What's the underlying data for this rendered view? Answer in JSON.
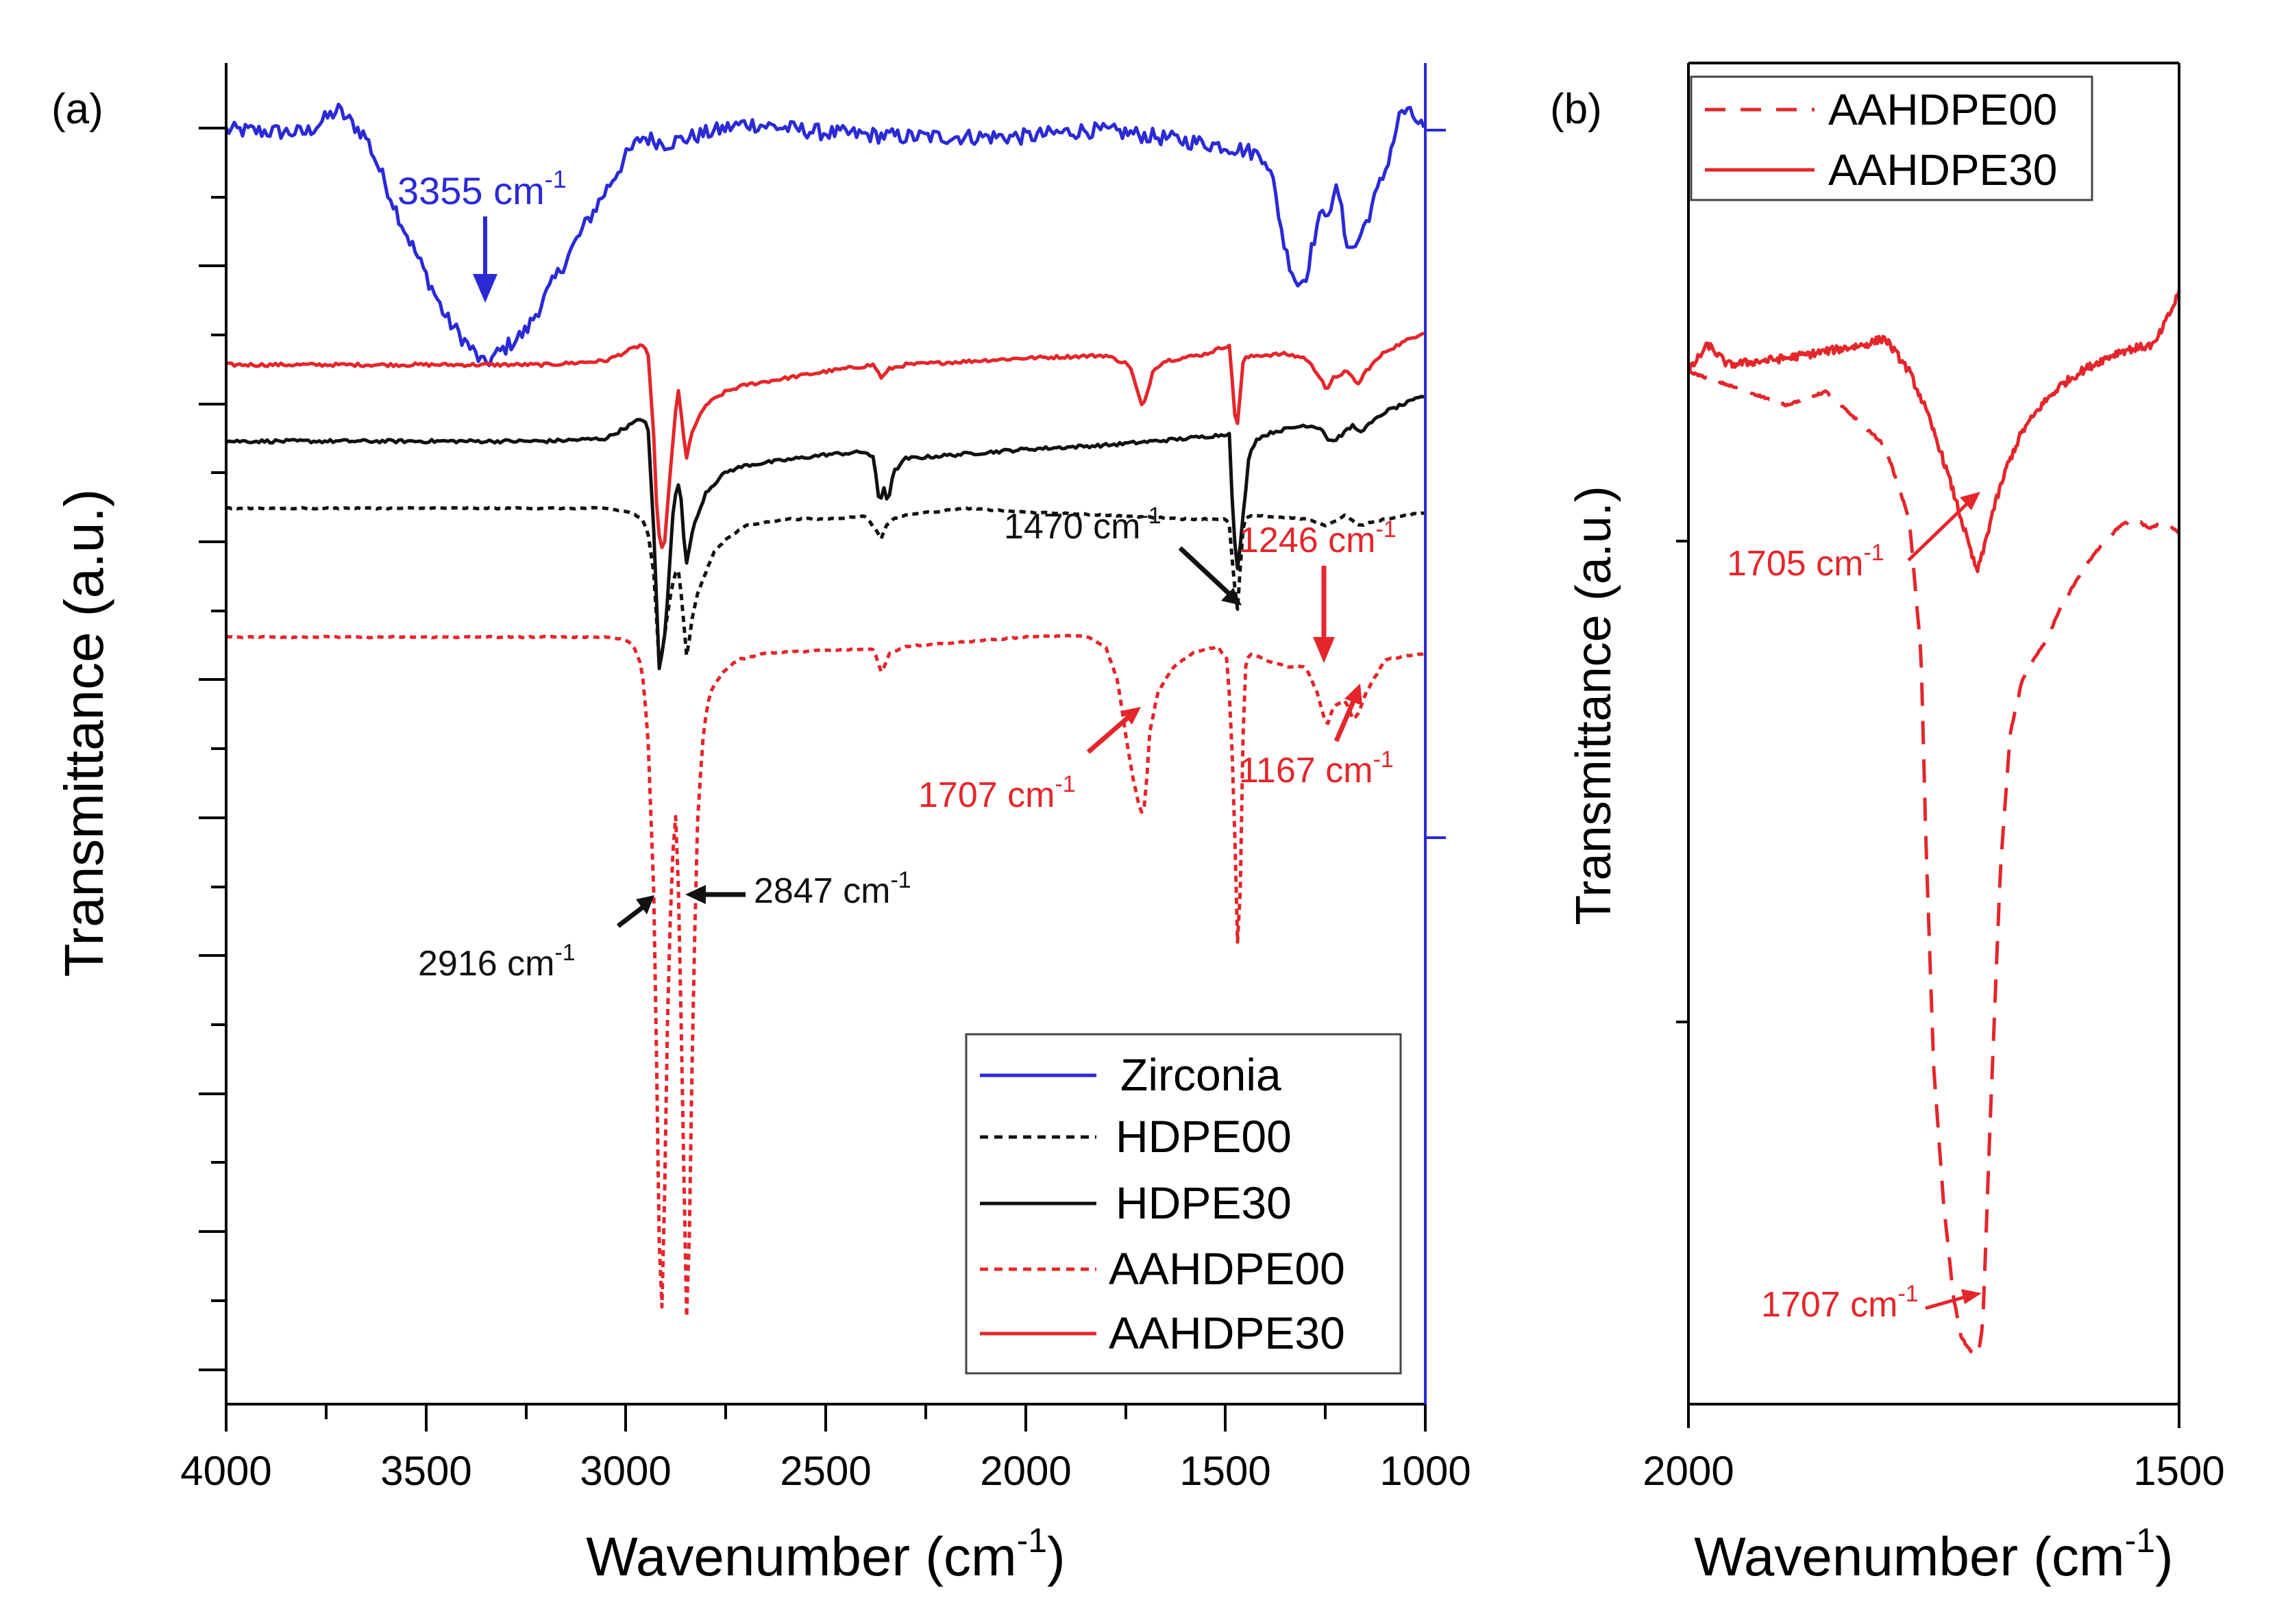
{
  "figure": {
    "colors": {
      "blue": "#2a2ad6",
      "red": "#e4262b",
      "black": "#111111",
      "axis": "#000000"
    }
  },
  "chart_data": [
    {
      "panel_label": "(a)",
      "type": "line",
      "xlabel": "Wavenumber (cm",
      "xlabel_sup": "-1",
      "xlabel_close": ")",
      "ylabel": "Transmittance (a.u.)",
      "xlim": [
        4000,
        1000
      ],
      "ylim": [
        0,
        100
      ],
      "x_ticks": [
        4000,
        3500,
        3000,
        2500,
        2000,
        1500,
        1000
      ],
      "x_tick_labels": [
        "4000",
        "3500",
        "3000",
        "2500",
        "2000",
        "1500",
        "1000"
      ],
      "right_axis": {
        "color": "#2a2ad6",
        "ticks": [
          95,
          44
        ]
      },
      "legend": {
        "position": "bottom-right",
        "entries": [
          {
            "label": "Zirconia",
            "color": "#2a2ad6",
            "dash": "solid"
          },
          {
            "label": "HDPE00",
            "color": "#111111",
            "dash": "dotted"
          },
          {
            "label": "HDPE30",
            "color": "#111111",
            "dash": "solid"
          },
          {
            "label": "AAHDPE00",
            "color": "#e4262b",
            "dash": "dotted"
          },
          {
            "label": "AAHDPE30",
            "color": "#e4262b",
            "dash": "solid"
          }
        ]
      },
      "series": [
        {
          "name": "Zirconia",
          "color": "#2a2ad6",
          "dash": "solid",
          "noise": 1.2,
          "x": [
            4000,
            3800,
            3720,
            3650,
            3560,
            3450,
            3355,
            3250,
            3100,
            3000,
            2960,
            2900,
            2700,
            2500,
            2300,
            2000,
            1850,
            1750,
            1600,
            1500,
            1450,
            1400,
            1380,
            1350,
            1320,
            1300,
            1270,
            1250,
            1230,
            1220,
            1200,
            1180,
            1150,
            1100,
            1060,
            1030,
            1000
          ],
          "y": [
            95,
            94.8,
            96.5,
            94.5,
            88,
            81,
            77.5,
            80,
            88,
            93,
            94.5,
            94,
            95.5,
            94.8,
            94.5,
            94.5,
            95,
            94.8,
            94.2,
            93.8,
            93.5,
            93,
            91,
            86,
            83.5,
            84,
            88,
            89,
            89.5,
            91,
            87,
            86,
            88,
            92,
            96.5,
            96,
            95
          ]
        },
        {
          "name": "AAHDPE30",
          "color": "#e4262b",
          "dash": "solid",
          "noise": 0.25,
          "x": [
            4000,
            3500,
            3200,
            3050,
            2960,
            2945,
            2930,
            2920,
            2905,
            2890,
            2870,
            2855,
            2848,
            2835,
            2800,
            2750,
            2700,
            2500,
            2380,
            2360,
            2340,
            2300,
            2000,
            1800,
            1740,
            1720,
            1707,
            1695,
            1680,
            1650,
            1550,
            1490,
            1480,
            1473,
            1466,
            1458,
            1450,
            1420,
            1350,
            1300,
            1260,
            1246,
            1230,
            1200,
            1180,
            1167,
            1150,
            1100,
            1000
          ],
          "y": [
            77.5,
            77.5,
            77.5,
            77.8,
            79,
            78.5,
            72,
            65,
            63.5,
            69,
            76,
            72,
            70.5,
            72.5,
            74.5,
            75.5,
            76,
            77,
            77.5,
            76.5,
            77.2,
            77.5,
            78,
            78.2,
            77.5,
            75.5,
            74.2,
            75.5,
            77.2,
            77.8,
            78.3,
            79,
            75,
            72.5,
            74,
            77.5,
            78,
            78.2,
            78.3,
            78,
            76.5,
            75.5,
            76.5,
            77,
            76.5,
            76,
            77,
            78.5,
            80
          ]
        },
        {
          "name": "HDPE30",
          "color": "#111111",
          "dash": "solid",
          "noise": 0.25,
          "x": [
            4000,
            3500,
            3200,
            3050,
            2960,
            2945,
            2930,
            2916,
            2900,
            2880,
            2865,
            2855,
            2847,
            2835,
            2800,
            2750,
            2700,
            2500,
            2400,
            2380,
            2365,
            2355,
            2345,
            2330,
            2300,
            2000,
            1800,
            1600,
            1500,
            1490,
            1482,
            1475,
            1468,
            1460,
            1450,
            1440,
            1420,
            1380,
            1300,
            1260,
            1246,
            1230,
            1200,
            1180,
            1167,
            1150,
            1100,
            1000
          ],
          "y": [
            71.8,
            71.8,
            71.8,
            72,
            73.5,
            73,
            65,
            54.5,
            58,
            67.5,
            69,
            64.5,
            62.5,
            65,
            68,
            69.5,
            70,
            70.8,
            71,
            70.5,
            67,
            68.5,
            67.2,
            69.5,
            70.5,
            71.2,
            71.5,
            72,
            72.3,
            72.5,
            66.5,
            63.5,
            62,
            65,
            68,
            71,
            72,
            72.5,
            73,
            72.8,
            72,
            71.8,
            72.5,
            73,
            72.5,
            72.8,
            74,
            75.2
          ]
        },
        {
          "name": "HDPE00",
          "color": "#111111",
          "dash": "dotted",
          "noise": 0.1,
          "x": [
            4000,
            3500,
            3200,
            3050,
            2990,
            2960,
            2945,
            2930,
            2920,
            2916,
            2910,
            2900,
            2885,
            2870,
            2860,
            2850,
            2847,
            2843,
            2835,
            2820,
            2800,
            2780,
            2750,
            2700,
            2600,
            2500,
            2400,
            2370,
            2360,
            2350,
            2330,
            2300,
            2150,
            2000,
            1800,
            1600,
            1500,
            1490,
            1480,
            1475,
            1470,
            1466,
            1462,
            1458,
            1450,
            1440,
            1400,
            1300,
            1246,
            1200,
            1167,
            1100,
            1000
          ],
          "y": [
            66.8,
            66.8,
            66.8,
            66.8,
            66.5,
            66,
            65,
            62,
            57,
            55,
            56,
            58,
            61,
            62.5,
            60,
            56.5,
            55.5,
            56.5,
            58.5,
            60.5,
            62,
            63.5,
            64.5,
            65.5,
            66,
            66,
            66.2,
            65,
            64.5,
            65.5,
            66,
            66.3,
            66.8,
            66.5,
            66.3,
            66,
            66,
            65.5,
            61.8,
            60.5,
            59.2,
            60,
            63,
            65,
            66,
            66.2,
            66.2,
            66,
            65.5,
            66.3,
            65.5,
            66,
            66.5
          ]
        },
        {
          "name": "AAHDPE00",
          "color": "#e4262b",
          "dash": "dotted",
          "noise": 0.1,
          "x": [
            4000,
            3500,
            3200,
            3050,
            3000,
            2980,
            2960,
            2945,
            2930,
            2920,
            2913,
            2905,
            2895,
            2885,
            2875,
            2868,
            2860,
            2853,
            2847,
            2840,
            2832,
            2820,
            2805,
            2790,
            2760,
            2720,
            2650,
            2500,
            2380,
            2360,
            2340,
            2300,
            2000,
            1850,
            1800,
            1770,
            1750,
            1730,
            1715,
            1707,
            1700,
            1690,
            1670,
            1630,
            1580,
            1520,
            1495,
            1485,
            1478,
            1472,
            1468,
            1464,
            1458,
            1450,
            1440,
            1400,
            1350,
            1300,
            1270,
            1246,
            1230,
            1200,
            1180,
            1167,
            1150,
            1100,
            1000
          ],
          "y": [
            57.2,
            57.2,
            57.2,
            57.2,
            57,
            56.5,
            55,
            50,
            38,
            20,
            4,
            12,
            30,
            40,
            44,
            38,
            26,
            14,
            5,
            14,
            30,
            44,
            50.5,
            53,
            54.5,
            55.5,
            56,
            56.2,
            56.3,
            54.5,
            56,
            56.5,
            57.2,
            57.3,
            56.5,
            54,
            50,
            46.5,
            44.5,
            44,
            45,
            50,
            53,
            55,
            56,
            56.5,
            55.5,
            50,
            44,
            37,
            32.5,
            36,
            48,
            55,
            56,
            55.5,
            55,
            55,
            53,
            50.5,
            52,
            52.5,
            51,
            51.5,
            53,
            55.5,
            56
          ]
        }
      ],
      "annotations": [
        {
          "text": "3355 cm",
          "sup": "-1",
          "color": "#2a2ad6"
        },
        {
          "text": "2916 cm",
          "sup": "-1",
          "color": "#111111"
        },
        {
          "text": "2847 cm",
          "sup": "-1",
          "color": "#111111"
        },
        {
          "text": "1470 cm",
          "sup": "-1",
          "color": "#111111"
        },
        {
          "text": "1246 cm",
          "sup": "-1",
          "color": "#e4262b"
        },
        {
          "text": "1707 cm",
          "sup": "-1",
          "color": "#e4262b"
        },
        {
          "text": "1167 cm",
          "sup": "-1",
          "color": "#e4262b"
        }
      ]
    },
    {
      "panel_label": "(b)",
      "type": "line",
      "xlabel": "Wavenumber (cm",
      "xlabel_sup": "-1",
      "xlabel_close": ")",
      "ylabel": "Transmittance (a.u.)",
      "xlim": [
        2000,
        1500
      ],
      "ylim": [
        0,
        100
      ],
      "x_ticks": [
        2000,
        1500
      ],
      "x_tick_labels": [
        "2000",
        "1500"
      ],
      "legend": {
        "position": "top-left",
        "entries": [
          {
            "label": "AAHDPE00",
            "color": "#e4262b",
            "dash": "dashed"
          },
          {
            "label": "AAHDPE30",
            "color": "#e4262b",
            "dash": "solid"
          }
        ]
      },
      "series": [
        {
          "name": "AAHDPE00",
          "color": "#e4262b",
          "dash": "dashed",
          "noise": 0.15,
          "x": [
            2000,
            1960,
            1900,
            1860,
            1830,
            1800,
            1775,
            1763,
            1758,
            1750,
            1740,
            1730,
            1722,
            1715,
            1710,
            1707,
            1704,
            1700,
            1692,
            1682,
            1672,
            1660,
            1648,
            1635,
            1620,
            1600,
            1580,
            1560,
            1545,
            1530,
            1515,
            1500
          ],
          "y": [
            77,
            76,
            74.5,
            75.5,
            73.5,
            71.5,
            66,
            56,
            42,
            25,
            15,
            8,
            5,
            4.2,
            3.8,
            3.5,
            4,
            6,
            22,
            40,
            50,
            54,
            55.5,
            57,
            59.5,
            62,
            64,
            65.5,
            66,
            65.3,
            65.8,
            65
          ]
        },
        {
          "name": "AAHDPE30",
          "color": "#e4262b",
          "dash": "solid",
          "noise": 0.6,
          "x": [
            2000,
            1980,
            1960,
            1900,
            1860,
            1820,
            1800,
            1790,
            1775,
            1760,
            1745,
            1730,
            1718,
            1708,
            1705,
            1700,
            1690,
            1675,
            1660,
            1640,
            1620,
            1600,
            1580,
            1560,
            1540,
            1525,
            1515,
            1505,
            1500
          ],
          "y": [
            77,
            79,
            77.5,
            78,
            78.5,
            79,
            79.5,
            78.5,
            77,
            74.5,
            71.5,
            68,
            65,
            62.5,
            62.2,
            63.5,
            66.5,
            70,
            72.5,
            74.5,
            76,
            77,
            77.8,
            78.5,
            78.8,
            79,
            80.5,
            82,
            83
          ]
        }
      ],
      "annotations": [
        {
          "text": "1705 cm",
          "sup": "-1",
          "color": "#e4262b"
        },
        {
          "text": "1707 cm",
          "sup": "-1",
          "color": "#e4262b"
        }
      ]
    }
  ]
}
